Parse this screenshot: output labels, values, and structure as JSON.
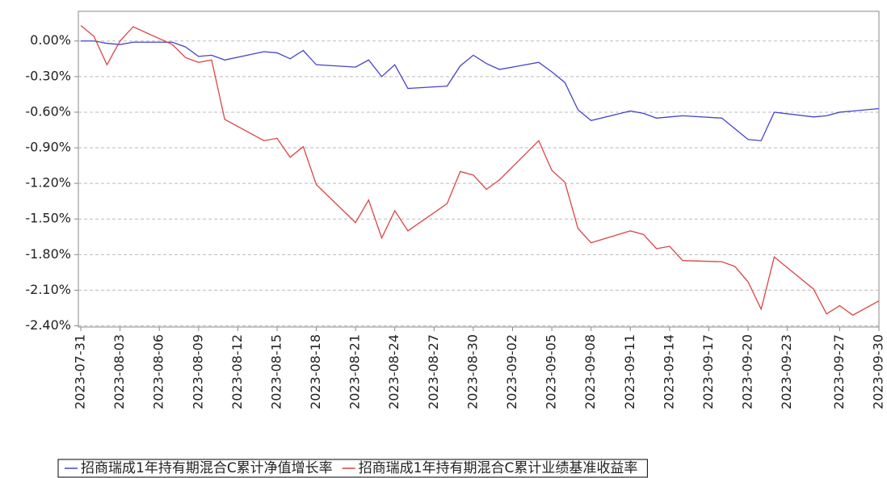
{
  "chart_data": {
    "type": "line",
    "x": [
      "2023-07-31",
      "2023-08-01",
      "2023-08-02",
      "2023-08-03",
      "2023-08-04",
      "2023-08-07",
      "2023-08-08",
      "2023-08-09",
      "2023-08-10",
      "2023-08-11",
      "2023-08-14",
      "2023-08-15",
      "2023-08-16",
      "2023-08-17",
      "2023-08-18",
      "2023-08-21",
      "2023-08-22",
      "2023-08-23",
      "2023-08-24",
      "2023-08-25",
      "2023-08-28",
      "2023-08-29",
      "2023-08-30",
      "2023-08-31",
      "2023-09-01",
      "2023-09-04",
      "2023-09-05",
      "2023-09-06",
      "2023-09-07",
      "2023-09-08",
      "2023-09-11",
      "2023-09-12",
      "2023-09-13",
      "2023-09-14",
      "2023-09-15",
      "2023-09-18",
      "2023-09-19",
      "2023-09-20",
      "2023-09-21",
      "2023-09-22",
      "2023-09-25",
      "2023-09-26",
      "2023-09-27",
      "2023-09-28",
      "2023-09-30"
    ],
    "series": [
      {
        "name": "招商瑞成1年持有期混合C累计净值增长率",
        "color": "#4444cc",
        "values": [
          0.0,
          0.0,
          -0.02,
          -0.03,
          -0.01,
          -0.01,
          -0.05,
          -0.13,
          -0.12,
          -0.16,
          -0.09,
          -0.1,
          -0.15,
          -0.08,
          -0.2,
          -0.22,
          -0.16,
          -0.3,
          -0.2,
          -0.4,
          -0.38,
          -0.21,
          -0.12,
          -0.19,
          -0.24,
          -0.18,
          -0.26,
          -0.35,
          -0.58,
          -0.67,
          -0.59,
          -0.61,
          -0.65,
          -0.64,
          -0.63,
          -0.65,
          -0.74,
          -0.83,
          -0.84,
          -0.6,
          -0.64,
          -0.63,
          -0.6,
          -0.59,
          -0.57
        ]
      },
      {
        "name": "招商瑞成1年持有期混合C累计业绩基准收益率",
        "color": "#dd4444",
        "values": [
          0.13,
          0.04,
          -0.2,
          0.0,
          0.12,
          -0.03,
          -0.14,
          -0.18,
          -0.16,
          -0.66,
          -0.84,
          -0.82,
          -0.98,
          -0.89,
          -1.21,
          -1.53,
          -1.34,
          -1.66,
          -1.43,
          -1.6,
          -1.37,
          -1.1,
          -1.13,
          -1.25,
          -1.17,
          -0.84,
          -1.09,
          -1.19,
          -1.58,
          -1.7,
          -1.6,
          -1.63,
          -1.75,
          -1.73,
          -1.85,
          -1.86,
          -1.9,
          -2.03,
          -2.26,
          -1.82,
          -2.09,
          -2.3,
          -2.23,
          -2.31,
          -2.19
        ]
      }
    ],
    "xlim": [
      "2023-07-31",
      "2023-09-30"
    ],
    "xticks": [
      "2023-07-31",
      "2023-08-03",
      "2023-08-06",
      "2023-08-09",
      "2023-08-12",
      "2023-08-15",
      "2023-08-18",
      "2023-08-21",
      "2023-08-24",
      "2023-08-27",
      "2023-08-30",
      "2023-09-02",
      "2023-09-05",
      "2023-09-08",
      "2023-09-11",
      "2023-09-14",
      "2023-09-17",
      "2023-09-20",
      "2023-09-23",
      "2023-09-27",
      "2023-09-30"
    ],
    "ylim": [
      -2.41,
      0.25
    ],
    "yticks": [
      {
        "value": 0,
        "label": "0.00%"
      },
      {
        "value": -0.3,
        "label": "-0.30%"
      },
      {
        "value": -0.6,
        "label": "-0.60%"
      },
      {
        "value": -0.9,
        "label": "-0.90%"
      },
      {
        "value": -1.2,
        "label": "-1.20%"
      },
      {
        "value": -1.5,
        "label": "-1.50%"
      },
      {
        "value": -1.8,
        "label": "-1.80%"
      },
      {
        "value": -2.1,
        "label": "-2.10%"
      },
      {
        "value": -2.4,
        "label": "-2.40%"
      }
    ],
    "grid": true,
    "legend": "bottom"
  }
}
